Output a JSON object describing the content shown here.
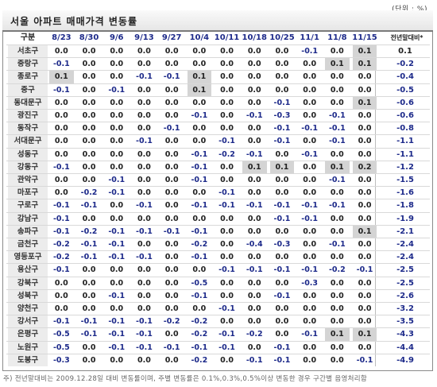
{
  "unit_label": "(단위 : %)",
  "title": "서울 아파트 매매가격 변동률",
  "header": {
    "district": "구분",
    "dates": [
      "8/23",
      "8/30",
      "9/6",
      "9/13",
      "9/27",
      "10/4",
      "10/11",
      "10/18",
      "10/25",
      "11/1",
      "11/8",
      "11/15"
    ],
    "prev_year_end": "전년말대비*"
  },
  "rows": [
    {
      "name": "서초구",
      "values": [
        "0.0",
        "0.0",
        "0.0",
        "0.0",
        "0.0",
        "0.0",
        "0.0",
        "0.0",
        "0.0",
        "-0.1",
        "0.0",
        "0.1"
      ],
      "highlight": [
        11
      ],
      "prev": "0.1"
    },
    {
      "name": "중랑구",
      "values": [
        "-0.1",
        "0.0",
        "0.0",
        "0.0",
        "0.0",
        "0.0",
        "0.0",
        "0.0",
        "0.0",
        "0.0",
        "0.1",
        "0.1"
      ],
      "highlight": [
        10,
        11
      ],
      "prev": "-0.2"
    },
    {
      "name": "종로구",
      "values": [
        "0.1",
        "0.0",
        "0.0",
        "-0.1",
        "-0.1",
        "0.1",
        "0.0",
        "0.0",
        "0.0",
        "0.0",
        "0.0",
        "0.0"
      ],
      "highlight": [
        0,
        5
      ],
      "prev": "-0.4"
    },
    {
      "name": "중구",
      "values": [
        "-0.1",
        "0.0",
        "-0.1",
        "0.0",
        "0.0",
        "0.1",
        "0.0",
        "0.0",
        "0.0",
        "0.0",
        "0.0",
        "0.0"
      ],
      "highlight": [
        5
      ],
      "prev": "-0.5"
    },
    {
      "name": "동대문구",
      "values": [
        "0.0",
        "0.0",
        "0.0",
        "0.0",
        "0.0",
        "0.0",
        "0.0",
        "0.0",
        "-0.1",
        "0.0",
        "0.0",
        "0.1"
      ],
      "highlight": [
        11
      ],
      "prev": "-0.6"
    },
    {
      "name": "광진구",
      "values": [
        "0.0",
        "0.0",
        "0.0",
        "0.0",
        "0.0",
        "-0.1",
        "0.0",
        "-0.1",
        "-0.3",
        "0.0",
        "-0.1",
        "0.0"
      ],
      "highlight": [],
      "prev": "-0.6"
    },
    {
      "name": "동작구",
      "values": [
        "0.0",
        "0.0",
        "0.0",
        "0.0",
        "-0.1",
        "0.0",
        "0.0",
        "0.0",
        "-0.1",
        "-0.1",
        "-0.1",
        "0.0"
      ],
      "highlight": [],
      "prev": "-0.8"
    },
    {
      "name": "서대문구",
      "values": [
        "0.0",
        "0.0",
        "0.0",
        "-0.1",
        "0.0",
        "0.0",
        "-0.1",
        "0.0",
        "-0.1",
        "0.0",
        "-0.1",
        "0.0"
      ],
      "highlight": [],
      "prev": "-1.1"
    },
    {
      "name": "성동구",
      "values": [
        "0.0",
        "0.0",
        "0.0",
        "0.0",
        "0.0",
        "-0.1",
        "-0.2",
        "-0.1",
        "0.0",
        "-0.1",
        "0.0",
        "0.0"
      ],
      "highlight": [],
      "prev": "-1.1"
    },
    {
      "name": "강동구",
      "values": [
        "-0.1",
        "0.0",
        "0.0",
        "0.0",
        "0.0",
        "-0.1",
        "0.0",
        "0.1",
        "0.1",
        "0.0",
        "0.1",
        "0.2"
      ],
      "highlight": [
        7,
        8,
        10,
        11
      ],
      "prev": "-1.2"
    },
    {
      "name": "관악구",
      "values": [
        "0.0",
        "0.0",
        "-0.1",
        "0.0",
        "0.0",
        "-0.1",
        "0.0",
        "0.0",
        "0.0",
        "0.0",
        "-0.1",
        "0.0"
      ],
      "highlight": [],
      "prev": "-1.5"
    },
    {
      "name": "마포구",
      "values": [
        "0.0",
        "-0.2",
        "-0.1",
        "0.0",
        "0.0",
        "0.0",
        "-0.1",
        "0.0",
        "0.0",
        "0.0",
        "0.0",
        "0.0"
      ],
      "highlight": [],
      "prev": "-1.6"
    },
    {
      "name": "구로구",
      "values": [
        "-0.1",
        "-0.1",
        "0.0",
        "-0.1",
        "0.0",
        "-0.1",
        "-0.1",
        "-0.1",
        "-0.1",
        "-0.1",
        "-0.1",
        "0.0"
      ],
      "highlight": [],
      "prev": "-1.8"
    },
    {
      "name": "강남구",
      "values": [
        "-0.1",
        "0.0",
        "0.0",
        "0.0",
        "0.0",
        "0.0",
        "0.0",
        "0.0",
        "-0.1",
        "-0.1",
        "0.0",
        "0.0"
      ],
      "highlight": [],
      "prev": "-1.9"
    },
    {
      "name": "송파구",
      "values": [
        "-0.1",
        "-0.2",
        "-0.1",
        "-0.1",
        "-0.1",
        "-0.1",
        "0.0",
        "0.0",
        "0.0",
        "0.0",
        "0.0",
        "0.1"
      ],
      "highlight": [
        11
      ],
      "prev": "-2.1"
    },
    {
      "name": "금천구",
      "values": [
        "-0.2",
        "-0.1",
        "-0.1",
        "0.0",
        "0.0",
        "-0.2",
        "0.0",
        "-0.4",
        "-0.3",
        "0.0",
        "-0.1",
        "0.0"
      ],
      "highlight": [],
      "prev": "-2.4"
    },
    {
      "name": "영등포구",
      "values": [
        "-0.2",
        "-0.1",
        "-0.1",
        "-0.1",
        "0.0",
        "-0.1",
        "0.0",
        "0.0",
        "0.0",
        "0.0",
        "0.0",
        "0.0"
      ],
      "highlight": [],
      "prev": "-2.4"
    },
    {
      "name": "용산구",
      "values": [
        "-0.1",
        "0.0",
        "0.0",
        "0.0",
        "0.0",
        "0.0",
        "-0.1",
        "-0.1",
        "-0.1",
        "-0.1",
        "-0.2",
        "-0.1"
      ],
      "highlight": [],
      "prev": "-2.5"
    },
    {
      "name": "강북구",
      "values": [
        "0.0",
        "0.0",
        "0.0",
        "0.0",
        "0.0",
        "-0.5",
        "0.0",
        "0.0",
        "0.0",
        "-0.3",
        "0.0",
        "0.0"
      ],
      "highlight": [],
      "prev": "-2.5"
    },
    {
      "name": "성북구",
      "values": [
        "0.0",
        "0.0",
        "-0.1",
        "0.0",
        "0.0",
        "-0.1",
        "0.0",
        "0.0",
        "-0.1",
        "0.0",
        "0.0",
        "0.0"
      ],
      "highlight": [],
      "prev": "-2.6"
    },
    {
      "name": "양천구",
      "values": [
        "0.0",
        "0.0",
        "0.0",
        "0.0",
        "0.0",
        "0.0",
        "-0.1",
        "0.0",
        "0.0",
        "0.0",
        "0.0",
        "0.0"
      ],
      "highlight": [],
      "prev": "-3.2"
    },
    {
      "name": "강서구",
      "values": [
        "-0.1",
        "-0.1",
        "-0.1",
        "-0.1",
        "-0.2",
        "-0.2",
        "0.0",
        "0.0",
        "0.0",
        "0.0",
        "0.0",
        "0.0"
      ],
      "highlight": [],
      "prev": "-3.5"
    },
    {
      "name": "은평구",
      "values": [
        "-0.5",
        "-0.1",
        "-0.1",
        "-0.1",
        "0.0",
        "-0.2",
        "-0.1",
        "-0.2",
        "0.0",
        "-0.1",
        "0.1",
        "0.1"
      ],
      "highlight": [
        10,
        11
      ],
      "prev": "-4.3"
    },
    {
      "name": "노원구",
      "values": [
        "-0.5",
        "0.0",
        "-0.1",
        "-0.1",
        "-0.1",
        "-0.1",
        "-0.1",
        "0.0",
        "-0.1",
        "0.0",
        "0.0",
        "0.0"
      ],
      "highlight": [],
      "prev": "-4.4"
    },
    {
      "name": "도봉구",
      "values": [
        "-0.3",
        "0.0",
        "0.0",
        "0.0",
        "0.0",
        "-0.2",
        "0.0",
        "-0.1",
        "-0.1",
        "0.0",
        "0.0",
        "-0.1"
      ],
      "highlight": [],
      "prev": "-4.9"
    }
  ],
  "footnote": "주) 전년말대비는 2009.12.28일 대비 변동률이며, 주별 변동률은 0.1%,0.3%,0.5%이상 변동한 경우 구간별 음영처리함"
}
